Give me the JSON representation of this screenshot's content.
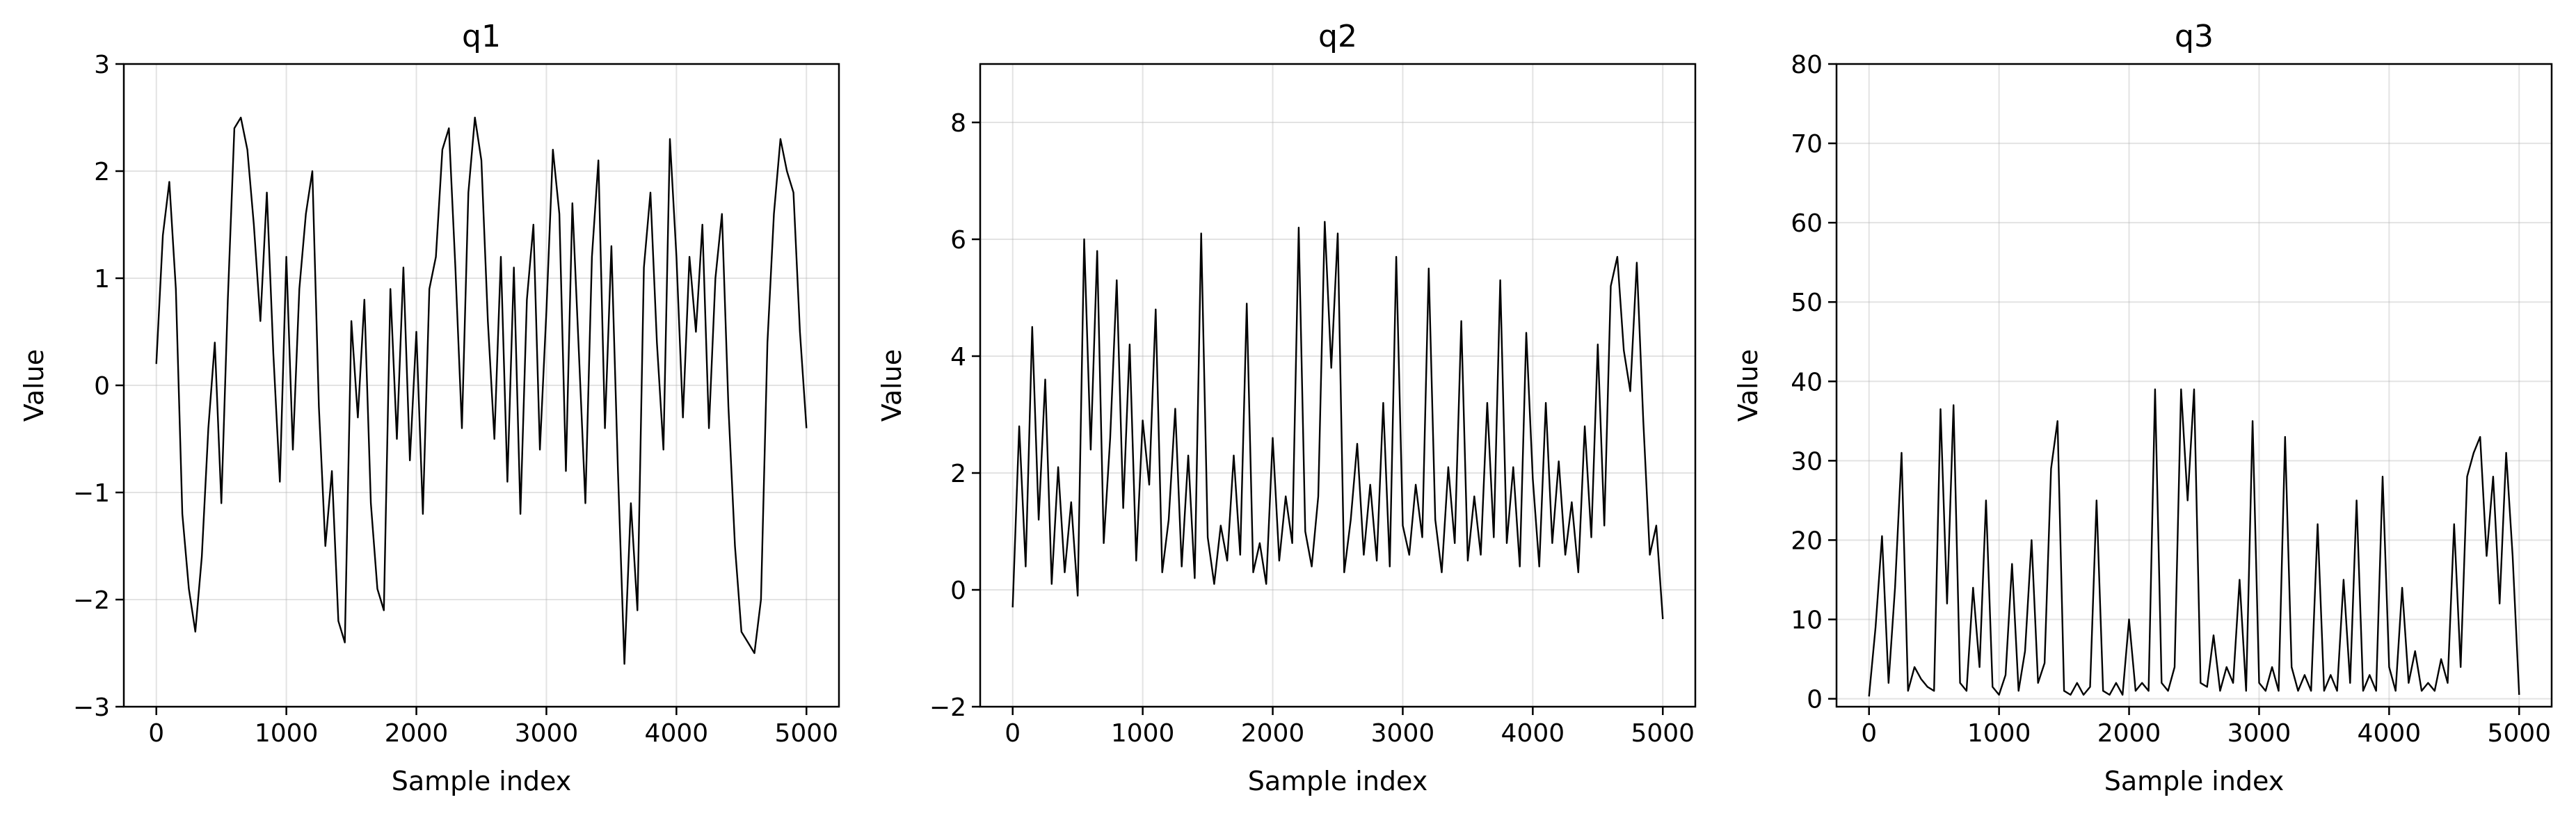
{
  "chart_data": [
    {
      "type": "line",
      "title": "q1",
      "xlabel": "Sample index",
      "ylabel": "Value",
      "xlim": [
        -250,
        5250
      ],
      "ylim": [
        -3,
        3
      ],
      "xticks": [
        0,
        1000,
        2000,
        3000,
        4000,
        5000
      ],
      "yticks": [
        -3,
        -2,
        -1,
        0,
        1,
        2,
        3
      ],
      "xtick_labels": [
        "0",
        "1000",
        "2000",
        "3000",
        "4000",
        "5000"
      ],
      "ytick_labels": [
        "−3",
        "−2",
        "−1",
        "0",
        "1",
        "2",
        "3"
      ],
      "grid": true,
      "series": [
        {
          "x": [
            0,
            50,
            100,
            150,
            200,
            250,
            300,
            350,
            400,
            450,
            500,
            550,
            600,
            650,
            700,
            750,
            800,
            850,
            900,
            950,
            1000,
            1050,
            1100,
            1150,
            1200,
            1250,
            1300,
            1350,
            1400,
            1450,
            1500,
            1550,
            1600,
            1650,
            1700,
            1750,
            1800,
            1850,
            1900,
            1950,
            2000,
            2050,
            2100,
            2150,
            2200,
            2250,
            2300,
            2350,
            2400,
            2450,
            2500,
            2550,
            2600,
            2650,
            2700,
            2750,
            2800,
            2850,
            2900,
            2950,
            3000,
            3050,
            3100,
            3150,
            3200,
            3250,
            3300,
            3350,
            3400,
            3450,
            3500,
            3550,
            3600,
            3650,
            3700,
            3750,
            3800,
            3850,
            3900,
            3950,
            4000,
            4050,
            4100,
            4150,
            4200,
            4250,
            4300,
            4350,
            4400,
            4450,
            4500,
            4550,
            4600,
            4650,
            4700,
            4750,
            4800,
            4850,
            4900,
            4950,
            5000
          ],
          "y": [
            0.2,
            1.4,
            1.9,
            0.9,
            -1.2,
            -1.9,
            -2.3,
            -1.6,
            -0.4,
            0.4,
            -1.1,
            0.8,
            2.4,
            2.5,
            2.2,
            1.5,
            0.6,
            1.8,
            0.3,
            -0.9,
            1.2,
            -0.6,
            0.9,
            1.6,
            2.0,
            -0.2,
            -1.5,
            -0.8,
            -2.2,
            -2.4,
            0.6,
            -0.3,
            0.8,
            -1.1,
            -1.9,
            -2.1,
            0.9,
            -0.5,
            1.1,
            -0.7,
            0.5,
            -1.2,
            0.9,
            1.2,
            2.2,
            2.4,
            1.1,
            -0.4,
            1.8,
            2.5,
            2.1,
            0.6,
            -0.5,
            1.2,
            -0.9,
            1.1,
            -1.2,
            0.8,
            1.5,
            -0.6,
            0.7,
            2.2,
            1.6,
            -0.8,
            1.7,
            0.3,
            -1.1,
            1.2,
            2.1,
            -0.4,
            1.3,
            -0.8,
            -2.6,
            -1.1,
            -2.1,
            1.1,
            1.8,
            0.4,
            -0.6,
            2.3,
            1.2,
            -0.3,
            1.2,
            0.5,
            1.5,
            -0.4,
            1.0,
            1.6,
            -0.2,
            -1.5,
            -2.3,
            -2.4,
            -2.5,
            -2.0,
            0.4,
            1.6,
            2.3,
            2.0,
            1.8,
            0.5,
            -0.4
          ]
        }
      ]
    },
    {
      "type": "line",
      "title": "q2",
      "xlabel": "Sample index",
      "ylabel": "Value",
      "xlim": [
        -250,
        5250
      ],
      "ylim": [
        -2,
        9
      ],
      "xticks": [
        0,
        1000,
        2000,
        3000,
        4000,
        5000
      ],
      "yticks": [
        -2,
        0,
        2,
        4,
        6,
        8
      ],
      "xtick_labels": [
        "0",
        "1000",
        "2000",
        "3000",
        "4000",
        "5000"
      ],
      "ytick_labels": [
        "−2",
        "0",
        "2",
        "4",
        "6",
        "8"
      ],
      "grid": true,
      "series": [
        {
          "x": [
            0,
            50,
            100,
            150,
            200,
            250,
            300,
            350,
            400,
            450,
            500,
            550,
            600,
            650,
            700,
            750,
            800,
            850,
            900,
            950,
            1000,
            1050,
            1100,
            1150,
            1200,
            1250,
            1300,
            1350,
            1400,
            1450,
            1500,
            1550,
            1600,
            1650,
            1700,
            1750,
            1800,
            1850,
            1900,
            1950,
            2000,
            2050,
            2100,
            2150,
            2200,
            2250,
            2300,
            2350,
            2400,
            2450,
            2500,
            2550,
            2600,
            2650,
            2700,
            2750,
            2800,
            2850,
            2900,
            2950,
            3000,
            3050,
            3100,
            3150,
            3200,
            3250,
            3300,
            3350,
            3400,
            3450,
            3500,
            3550,
            3600,
            3650,
            3700,
            3750,
            3800,
            3850,
            3900,
            3950,
            4000,
            4050,
            4100,
            4150,
            4200,
            4250,
            4300,
            4350,
            4400,
            4450,
            4500,
            4550,
            4600,
            4650,
            4700,
            4750,
            4800,
            4850,
            4900,
            4950,
            5000
          ],
          "y": [
            -0.3,
            2.8,
            0.4,
            4.5,
            1.2,
            3.6,
            0.1,
            2.1,
            0.3,
            1.5,
            -0.1,
            6.0,
            2.4,
            5.8,
            0.8,
            2.6,
            5.3,
            1.4,
            4.2,
            0.5,
            2.9,
            1.8,
            4.8,
            0.3,
            1.2,
            3.1,
            0.4,
            2.3,
            0.2,
            6.1,
            0.9,
            0.1,
            1.1,
            0.5,
            2.3,
            0.6,
            4.9,
            0.3,
            0.8,
            0.1,
            2.6,
            0.5,
            1.6,
            0.8,
            6.2,
            1.0,
            0.4,
            1.6,
            6.3,
            3.8,
            6.1,
            0.3,
            1.2,
            2.5,
            0.6,
            1.8,
            0.5,
            3.2,
            0.4,
            5.7,
            1.1,
            0.6,
            1.8,
            0.9,
            5.5,
            1.2,
            0.3,
            2.1,
            0.8,
            4.6,
            0.5,
            1.6,
            0.6,
            3.2,
            0.9,
            5.3,
            0.8,
            2.1,
            0.4,
            4.4,
            1.9,
            0.4,
            3.2,
            0.8,
            2.2,
            0.6,
            1.5,
            0.3,
            2.8,
            0.9,
            4.2,
            1.1,
            5.2,
            5.7,
            4.1,
            3.4,
            5.6,
            2.9,
            0.6,
            1.1,
            -0.5
          ]
        }
      ]
    },
    {
      "type": "line",
      "title": "q3",
      "xlabel": "Sample index",
      "ylabel": "Value",
      "xlim": [
        -250,
        5250
      ],
      "ylim": [
        -1,
        80
      ],
      "xticks": [
        0,
        1000,
        2000,
        3000,
        4000,
        5000
      ],
      "yticks": [
        0,
        10,
        20,
        30,
        40,
        50,
        60,
        70,
        80
      ],
      "xtick_labels": [
        "0",
        "1000",
        "2000",
        "3000",
        "4000",
        "5000"
      ],
      "ytick_labels": [
        "0",
        "10",
        "20",
        "30",
        "40",
        "50",
        "60",
        "70",
        "80"
      ],
      "grid": true,
      "series": [
        {
          "x": [
            0,
            50,
            100,
            150,
            200,
            250,
            300,
            350,
            400,
            450,
            500,
            550,
            600,
            650,
            700,
            750,
            800,
            850,
            900,
            950,
            1000,
            1050,
            1100,
            1150,
            1200,
            1250,
            1300,
            1350,
            1400,
            1450,
            1500,
            1550,
            1600,
            1650,
            1700,
            1750,
            1800,
            1850,
            1900,
            1950,
            2000,
            2050,
            2100,
            2150,
            2200,
            2250,
            2300,
            2350,
            2400,
            2450,
            2500,
            2550,
            2600,
            2650,
            2700,
            2750,
            2800,
            2850,
            2900,
            2950,
            3000,
            3050,
            3100,
            3150,
            3200,
            3250,
            3300,
            3350,
            3400,
            3450,
            3500,
            3550,
            3600,
            3650,
            3700,
            3750,
            3800,
            3850,
            3900,
            3950,
            4000,
            4050,
            4100,
            4150,
            4200,
            4250,
            4300,
            4350,
            4400,
            4450,
            4500,
            4550,
            4600,
            4650,
            4700,
            4750,
            4800,
            4850,
            4900,
            4950,
            5000
          ],
          "y": [
            0.3,
            9.0,
            20.5,
            2.0,
            14.0,
            31.0,
            1.0,
            4.0,
            2.5,
            1.5,
            1.0,
            36.5,
            12.0,
            37.0,
            2.0,
            1.0,
            14.0,
            4.0,
            25.0,
            1.5,
            0.5,
            3.0,
            17.0,
            1.0,
            6.0,
            20.0,
            2.0,
            4.5,
            29.0,
            35.0,
            1.0,
            0.5,
            2.0,
            0.5,
            1.5,
            25.0,
            1.0,
            0.5,
            2.0,
            0.5,
            10.0,
            1.0,
            2.0,
            1.0,
            39.0,
            2.0,
            1.0,
            4.0,
            39.0,
            25.0,
            39.0,
            2.0,
            1.5,
            8.0,
            1.0,
            4.0,
            2.0,
            15.0,
            1.0,
            35.0,
            2.0,
            1.0,
            4.0,
            1.0,
            33.0,
            4.0,
            1.0,
            3.0,
            1.0,
            22.0,
            1.0,
            3.0,
            1.0,
            15.0,
            2.0,
            25.0,
            1.0,
            3.0,
            1.0,
            28.0,
            4.0,
            1.0,
            14.0,
            2.0,
            6.0,
            1.0,
            2.0,
            1.0,
            5.0,
            2.0,
            22.0,
            4.0,
            28.0,
            31.0,
            33.0,
            18.0,
            28.0,
            12.0,
            31.0,
            18.0,
            0.5
          ]
        }
      ]
    }
  ]
}
